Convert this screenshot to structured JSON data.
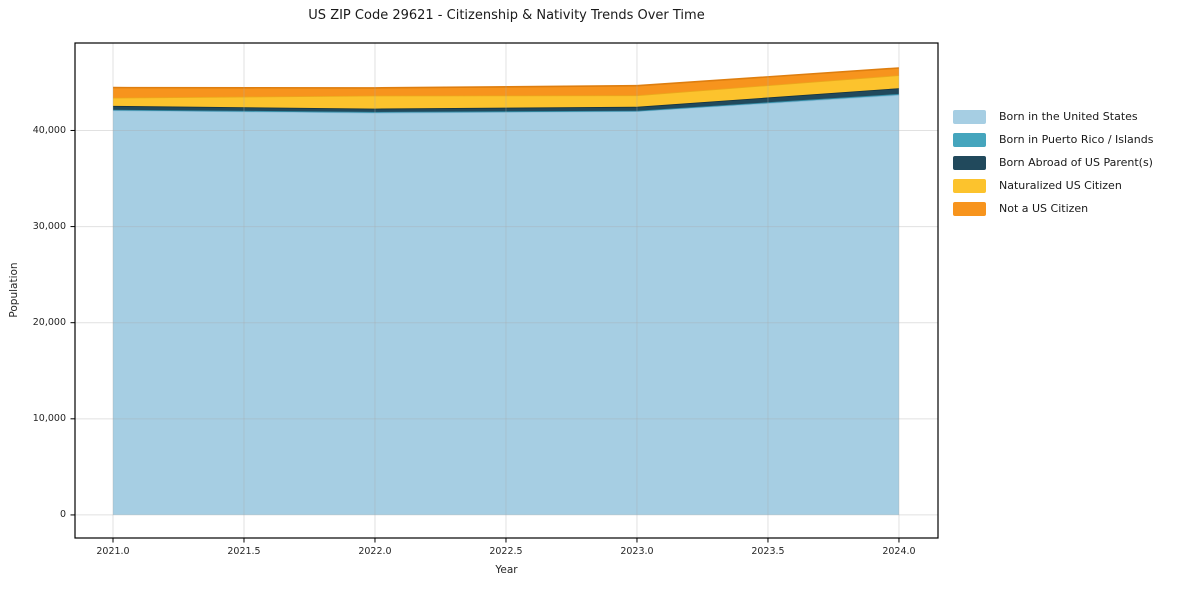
{
  "title": "US ZIP Code 29621 - Citizenship & Nativity Trends Over Time",
  "axes": {
    "x_label": "Year",
    "y_label": "Population"
  },
  "chart_data": {
    "type": "area",
    "stacked": true,
    "title": "US ZIP Code 29621 - Citizenship & Nativity Trends Over Time",
    "xlabel": "Year",
    "ylabel": "Population",
    "grid": true,
    "legend_position": "right-outside",
    "x": [
      2021,
      2022,
      2023,
      2024
    ],
    "xlim": [
      2020.855,
      2024.149
    ],
    "ylim": [
      -2400,
      49100
    ],
    "xticks": {
      "values": [
        2021.0,
        2021.5,
        2022.0,
        2022.5,
        2023.0,
        2023.5,
        2024.0
      ],
      "labels": [
        "2021.0",
        "2021.5",
        "2022.0",
        "2022.5",
        "2023.0",
        "2023.5",
        "2024.0"
      ]
    },
    "yticks": {
      "values": [
        0,
        10000,
        20000,
        30000,
        40000
      ],
      "labels": [
        "0",
        "10,000",
        "20,000",
        "30,000",
        "40,000"
      ]
    },
    "series": [
      {
        "name": "Born in the United States",
        "color": "#a6cee3",
        "edge": "#8bbcd8",
        "values": [
          42100,
          41850,
          42000,
          43700
        ]
      },
      {
        "name": "Born in Puerto Rico / Islands",
        "color": "#45a5bd",
        "edge": "#338ba3",
        "values": [
          60,
          80,
          60,
          100
        ]
      },
      {
        "name": "Born Abroad of US Parent(s)",
        "color": "#21495c",
        "edge": "#163340",
        "values": [
          400,
          350,
          400,
          600
        ]
      },
      {
        "name": "Naturalized US Citizen",
        "color": "#fcc32d",
        "edge": "#eba81c",
        "values": [
          850,
          1350,
          1200,
          1350
        ]
      },
      {
        "name": "Not a US Citizen",
        "color": "#f7941d",
        "edge": "#de7e0f",
        "values": [
          1050,
          800,
          1000,
          750
        ]
      }
    ]
  }
}
